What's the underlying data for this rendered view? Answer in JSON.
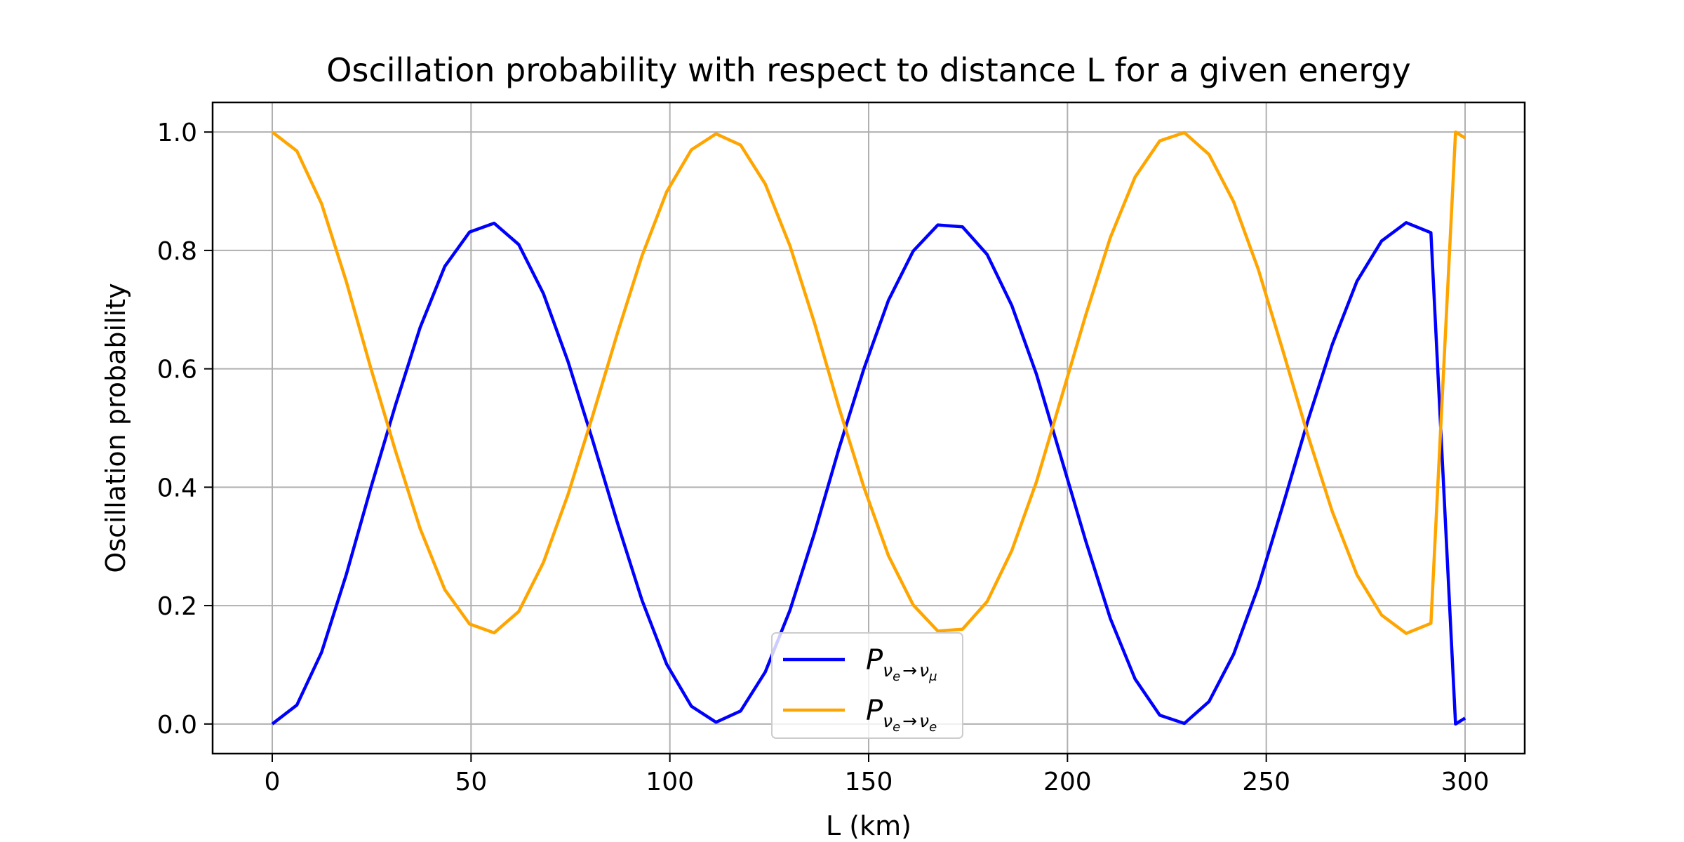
{
  "chart_data": {
    "type": "line",
    "title": "Oscillation probability with respect to distance L for a given energy",
    "xlabel": "L (km)",
    "ylabel": "Oscillation probability",
    "xlim": [
      -15,
      315
    ],
    "ylim": [
      -0.05,
      1.05
    ],
    "xticks": [
      0,
      50,
      100,
      150,
      200,
      250,
      300
    ],
    "xtick_labels": [
      "0",
      "50",
      "100",
      "150",
      "200",
      "250",
      "300"
    ],
    "yticks": [
      0.0,
      0.2,
      0.4,
      0.6,
      0.8,
      1.0
    ],
    "ytick_labels": [
      "0.0",
      "0.2",
      "0.4",
      "0.6",
      "0.8",
      "1.0"
    ],
    "grid": true,
    "legend_position": "lower center",
    "series": [
      {
        "name": "P_{νe→νμ}",
        "legend_symbol": "P",
        "legend_sub_main": "ν",
        "legend_sub_sub1": "e",
        "legend_arrow": "→",
        "legend_sub_main2": "ν",
        "legend_sub_sub2": "μ",
        "color": "#0000ff",
        "x": [
          0,
          6.2,
          12.4,
          18.6,
          24.8,
          31,
          37.2,
          43.4,
          49.6,
          55.8,
          62,
          68.2,
          74.4,
          80.6,
          86.8,
          93,
          99.2,
          105.4,
          111.6,
          117.8,
          124,
          130.2,
          136.4,
          142.6,
          148.8,
          155,
          161.2,
          167.4,
          173.6,
          179.8,
          186,
          192.2,
          198.4,
          204.6,
          210.8,
          217,
          223.2,
          229.4,
          235.6,
          241.8,
          248,
          254.2,
          260.4,
          266.6,
          272.8,
          279,
          285.2,
          291.4,
          297.6,
          300
        ],
        "y": [
          0,
          0.032,
          0.121,
          0.252,
          0.399,
          0.539,
          0.67,
          0.773,
          0.831,
          0.846,
          0.81,
          0.727,
          0.612,
          0.479,
          0.34,
          0.209,
          0.101,
          0.03,
          0.003,
          0.022,
          0.088,
          0.192,
          0.323,
          0.467,
          0.6,
          0.716,
          0.799,
          0.843,
          0.84,
          0.793,
          0.707,
          0.591,
          0.45,
          0.309,
          0.178,
          0.076,
          0.015,
          0.001,
          0.038,
          0.118,
          0.232,
          0.37,
          0.511,
          0.641,
          0.748,
          0.816,
          0.847,
          0.83,
          0.0,
          0.01
        ]
      },
      {
        "name": "P_{νe→νe}",
        "legend_symbol": "P",
        "legend_sub_main": "ν",
        "legend_sub_sub1": "e",
        "legend_arrow": "→",
        "legend_sub_main2": "ν",
        "legend_sub_sub2": "e",
        "color": "#ffa500",
        "x": [
          0,
          6.2,
          12.4,
          18.6,
          24.8,
          31,
          37.2,
          43.4,
          49.6,
          55.8,
          62,
          68.2,
          74.4,
          80.6,
          86.8,
          93,
          99.2,
          105.4,
          111.6,
          117.8,
          124,
          130.2,
          136.4,
          142.6,
          148.8,
          155,
          161.2,
          167.4,
          173.6,
          179.8,
          186,
          192.2,
          198.4,
          204.6,
          210.8,
          217,
          223.2,
          229.4,
          235.6,
          241.8,
          248,
          254.2,
          260.4,
          266.6,
          272.8,
          279,
          285.2,
          291.4,
          297.6,
          300
        ],
        "y": [
          1,
          0.968,
          0.879,
          0.748,
          0.601,
          0.461,
          0.33,
          0.227,
          0.169,
          0.154,
          0.19,
          0.273,
          0.388,
          0.521,
          0.66,
          0.791,
          0.899,
          0.97,
          0.997,
          0.978,
          0.912,
          0.808,
          0.677,
          0.533,
          0.4,
          0.284,
          0.201,
          0.157,
          0.16,
          0.207,
          0.293,
          0.409,
          0.55,
          0.691,
          0.822,
          0.924,
          0.985,
          0.999,
          0.962,
          0.882,
          0.768,
          0.63,
          0.489,
          0.359,
          0.252,
          0.184,
          0.153,
          0.17,
          1.0,
          0.99
        ]
      }
    ]
  }
}
